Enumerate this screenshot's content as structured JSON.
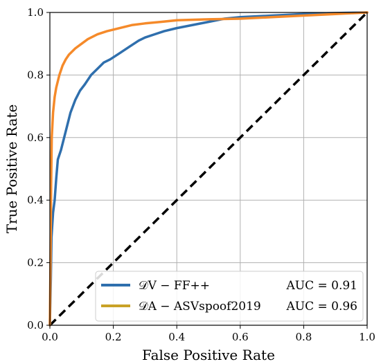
{
  "chart_data": {
    "type": "line",
    "title": "",
    "xlabel": "False Positive Rate",
    "ylabel": "True Positive Rate",
    "xlim": [
      0.0,
      1.0
    ],
    "ylim": [
      0.0,
      1.0
    ],
    "xticks": [
      "0.0",
      "0.2",
      "0.4",
      "0.6",
      "0.8",
      "1.0"
    ],
    "yticks": [
      "0.0",
      "0.2",
      "0.4",
      "0.6",
      "0.8",
      "1.0"
    ],
    "grid": true,
    "legend_position": "lower-right",
    "series": [
      {
        "name": "𝒟V − FF++",
        "auc_label": "AUC = 0.91",
        "color": "#2f6fad",
        "points": [
          [
            0.0,
            0.0
          ],
          [
            0.003,
            0.15
          ],
          [
            0.005,
            0.28
          ],
          [
            0.01,
            0.36
          ],
          [
            0.015,
            0.4
          ],
          [
            0.02,
            0.47
          ],
          [
            0.025,
            0.53
          ],
          [
            0.035,
            0.56
          ],
          [
            0.045,
            0.6
          ],
          [
            0.055,
            0.64
          ],
          [
            0.065,
            0.68
          ],
          [
            0.08,
            0.72
          ],
          [
            0.095,
            0.75
          ],
          [
            0.11,
            0.77
          ],
          [
            0.13,
            0.8
          ],
          [
            0.15,
            0.82
          ],
          [
            0.17,
            0.84
          ],
          [
            0.19,
            0.85
          ],
          [
            0.22,
            0.87
          ],
          [
            0.25,
            0.89
          ],
          [
            0.28,
            0.91
          ],
          [
            0.3,
            0.92
          ],
          [
            0.33,
            0.93
          ],
          [
            0.36,
            0.94
          ],
          [
            0.4,
            0.95
          ],
          [
            0.45,
            0.96
          ],
          [
            0.5,
            0.97
          ],
          [
            0.55,
            0.98
          ],
          [
            0.6,
            0.985
          ],
          [
            0.7,
            0.99
          ],
          [
            0.8,
            0.995
          ],
          [
            0.9,
            0.998
          ],
          [
            1.0,
            1.0
          ]
        ]
      },
      {
        "name": "𝒟A − ASVspoof2019",
        "auc_label": "AUC = 0.96",
        "color": "#f58a2a",
        "points": [
          [
            0.0,
            0.0
          ],
          [
            0.002,
            0.2
          ],
          [
            0.004,
            0.45
          ],
          [
            0.006,
            0.6
          ],
          [
            0.01,
            0.68
          ],
          [
            0.015,
            0.73
          ],
          [
            0.02,
            0.76
          ],
          [
            0.03,
            0.8
          ],
          [
            0.04,
            0.83
          ],
          [
            0.05,
            0.85
          ],
          [
            0.06,
            0.865
          ],
          [
            0.08,
            0.885
          ],
          [
            0.1,
            0.9
          ],
          [
            0.12,
            0.915
          ],
          [
            0.15,
            0.93
          ],
          [
            0.18,
            0.94
          ],
          [
            0.22,
            0.95
          ],
          [
            0.26,
            0.96
          ],
          [
            0.3,
            0.965
          ],
          [
            0.35,
            0.97
          ],
          [
            0.4,
            0.975
          ],
          [
            0.5,
            0.978
          ],
          [
            0.6,
            0.98
          ],
          [
            0.7,
            0.985
          ],
          [
            0.8,
            0.99
          ],
          [
            0.9,
            0.995
          ],
          [
            1.0,
            1.0
          ]
        ]
      }
    ],
    "reference_line": {
      "points": [
        [
          0.0,
          0.0
        ],
        [
          1.0,
          1.0
        ]
      ],
      "color": "#000000",
      "style": "dashed"
    },
    "legend_line_color_second": "#c9a227"
  }
}
